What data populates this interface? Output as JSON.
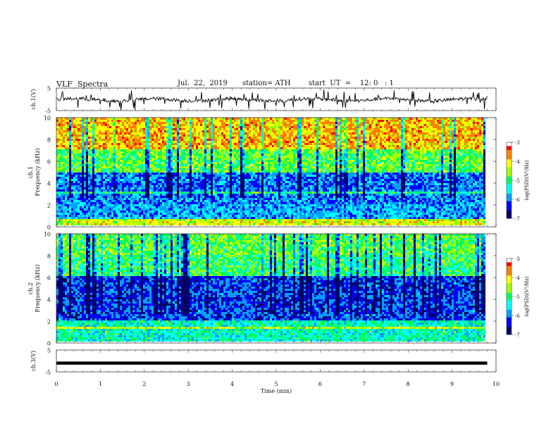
{
  "header": {
    "title": "VLF  Spectra",
    "date": "Jul.  22,  2019",
    "station": "station= ATH",
    "start_ut": "start  UT  =    12: 0   : 1"
  },
  "colors": {
    "waveform": "#000000",
    "colormap": [
      "#000066",
      "#0000ff",
      "#00a0ff",
      "#00ffff",
      "#00ff60",
      "#a0ff00",
      "#ffff00",
      "#ff8000",
      "#ff0000",
      "#ffffff"
    ]
  },
  "chart_data": {
    "type": "heatmap",
    "xlabel": "Time  (min)",
    "xlim": [
      0,
      10
    ],
    "x_ticks": [
      "0",
      "1",
      "2",
      "3",
      "4",
      "5",
      "6",
      "7",
      "8",
      "9",
      "10"
    ],
    "data_end_min": 9.8,
    "panels": [
      {
        "name": "ch.1",
        "kind": "waveform",
        "ylabel": "ch.1(V)",
        "ylim": [
          -5,
          5
        ],
        "y_ticks": [
          "5",
          "-5"
        ],
        "mean_level_V": -0.2
      },
      {
        "name": "ch.1",
        "kind": "spectrogram",
        "ylabel_line1": "ch.1",
        "ylabel_line2": "Frequency  (kHz)",
        "ylim": [
          0,
          10
        ],
        "y_ticks": [
          "0",
          "2",
          "4",
          "6",
          "8",
          "10"
        ],
        "colorbar_label": "log(PSD)(V²/Hz)",
        "colorbar_range": [
          -7,
          -3
        ],
        "colorbar_ticks": [
          "-3",
          "-4",
          "-5",
          "-6",
          "-7"
        ],
        "typical_log_psd_by_band": [
          {
            "kHz": [
              0,
              0.5
            ],
            "log_psd": -4.3
          },
          {
            "kHz": [
              0.5,
              2
            ],
            "log_psd": -5.8
          },
          {
            "kHz": [
              2,
              5
            ],
            "log_psd": -6.0
          },
          {
            "kHz": [
              5,
              7
            ],
            "log_psd": -4.8
          },
          {
            "kHz": [
              7,
              10
            ],
            "log_psd": -3.9
          }
        ]
      },
      {
        "name": "ch.2",
        "kind": "spectrogram",
        "ylabel_line1": "ch.2",
        "ylabel_line2": "Frequency  (kHz)",
        "ylim": [
          0,
          10
        ],
        "y_ticks": [
          "0",
          "2",
          "4",
          "6",
          "8",
          "10"
        ],
        "colorbar_label": "log(PSD)(V²/Hz)",
        "colorbar_range": [
          -7,
          -3
        ],
        "colorbar_ticks": [
          "-3",
          "-4",
          "-5",
          "-6",
          "-7"
        ],
        "typical_log_psd_by_band": [
          {
            "kHz": [
              0,
              2
            ],
            "log_psd": -5.3
          },
          {
            "kHz": [
              2,
              6
            ],
            "log_psd": -6.2
          },
          {
            "kHz": [
              6,
              8
            ],
            "log_psd": -5.0
          },
          {
            "kHz": [
              8,
              10
            ],
            "log_psd": -4.8
          }
        ]
      },
      {
        "name": "ch.3",
        "kind": "waveform",
        "ylabel": "ch.3(V)",
        "ylim": [
          -5,
          5
        ],
        "y_ticks": [
          "5",
          "-5"
        ],
        "mean_level_V": -1.0
      }
    ]
  }
}
